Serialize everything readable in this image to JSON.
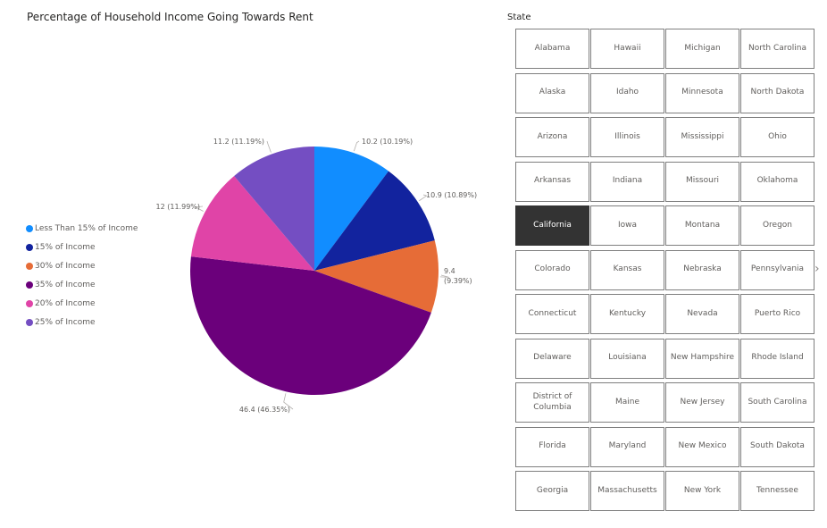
{
  "chart_data": {
    "type": "pie",
    "title": "Percentage of Household Income Going Towards Rent",
    "series": [
      {
        "name": "Less Than 15% of Income",
        "value": 10.2,
        "percent_label": "10.19%",
        "label": "10.2 (10.19%)",
        "color": "#118DFF"
      },
      {
        "name": "15% of Income",
        "value": 10.9,
        "percent_label": "10.89%",
        "label": "10.9 (10.89%)",
        "color": "#12239E"
      },
      {
        "name": "30% of Income",
        "value": 9.4,
        "percent_label": "9.39%",
        "label": "9.4 (9.39%)",
        "color": "#E66C37"
      },
      {
        "name": "35% of Income",
        "value": 46.4,
        "percent_label": "46.35%",
        "label": "46.4 (46.35%)",
        "color": "#6B007B"
      },
      {
        "name": "20% of Income",
        "value": 12,
        "percent_label": "11.99%",
        "label": "12 (11.99%)",
        "color": "#E044A7"
      },
      {
        "name": "25% of Income",
        "value": 11.2,
        "percent_label": "11.19%",
        "label": "11.2 (11.19%)",
        "color": "#744EC2"
      }
    ],
    "legend_position": "left"
  },
  "slicer": {
    "header": "State",
    "selected": "California",
    "next_icon": "chevron-right-icon",
    "states": [
      "Alabama",
      "Hawaii",
      "Michigan",
      "North Carolina",
      "Alaska",
      "Idaho",
      "Minnesota",
      "North Dakota",
      "Arizona",
      "Illinois",
      "Mississippi",
      "Ohio",
      "Arkansas",
      "Indiana",
      "Missouri",
      "Oklahoma",
      "California",
      "Iowa",
      "Montana",
      "Oregon",
      "Colorado",
      "Kansas",
      "Nebraska",
      "Pennsylvania",
      "Connecticut",
      "Kentucky",
      "Nevada",
      "Puerto Rico",
      "Delaware",
      "Louisiana",
      "New Hampshire",
      "Rhode Island",
      "District of Columbia",
      "Maine",
      "New Jersey",
      "South Carolina",
      "Florida",
      "Maryland",
      "New Mexico",
      "South Dakota",
      "Georgia",
      "Massachusetts",
      "New York",
      "Tennessee"
    ]
  }
}
